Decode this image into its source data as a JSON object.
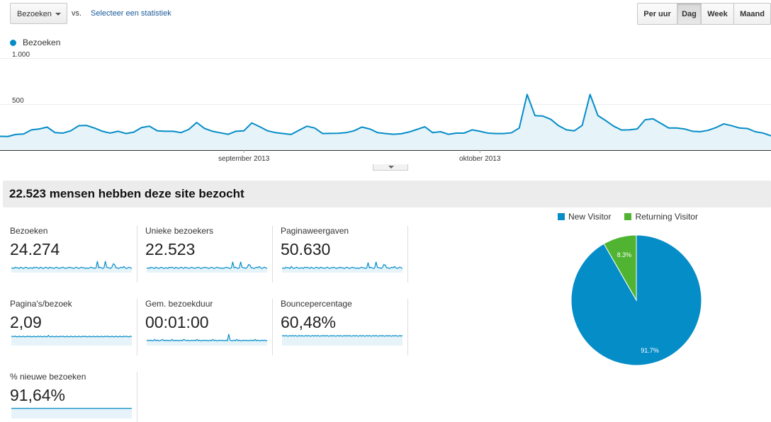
{
  "toolbar": {
    "metric_select": "Bezoeken",
    "vs_label": "vs.",
    "select_stat_link": "Selecteer een statistiek",
    "periods": [
      {
        "label": "Per uur",
        "active": false
      },
      {
        "label": "Dag",
        "active": true
      },
      {
        "label": "Week",
        "active": false
      },
      {
        "label": "Maand",
        "active": false
      }
    ]
  },
  "chart_data": [
    {
      "type": "area",
      "legend": "Bezoeken",
      "color": "#058dc7",
      "fill": "#e6f3f9",
      "ylim": [
        0,
        1000
      ],
      "y_ticks": [
        "1.000",
        "500"
      ],
      "y_tick_values": [
        1000,
        500
      ],
      "x_labels": [
        {
          "label": "september 2013",
          "index": 31
        },
        {
          "label": "oktober 2013",
          "index": 61
        }
      ],
      "values": [
        150,
        148,
        170,
        175,
        220,
        230,
        250,
        190,
        185,
        210,
        265,
        268,
        240,
        205,
        185,
        205,
        180,
        195,
        245,
        260,
        210,
        205,
        205,
        190,
        225,
        300,
        235,
        205,
        188,
        172,
        205,
        210,
        295,
        255,
        210,
        190,
        180,
        170,
        215,
        260,
        240,
        180,
        182,
        183,
        190,
        210,
        250,
        230,
        190,
        180,
        172,
        178,
        197,
        225,
        253,
        190,
        200,
        172,
        185,
        185,
        220,
        205,
        185,
        180,
        180,
        188,
        240,
        605,
        375,
        370,
        335,
        265,
        220,
        210,
        268,
        605,
        375,
        320,
        260,
        218,
        220,
        230,
        330,
        340,
        290,
        240,
        240,
        230,
        205,
        200,
        215,
        245,
        285,
        265,
        240,
        235,
        200,
        185,
        155
      ]
    },
    {
      "type": "pie",
      "labels": [
        "New Visitor",
        "Returning Visitor"
      ],
      "values": [
        91.7,
        8.3
      ],
      "value_labels": [
        "91.7%",
        "8.3%"
      ],
      "colors": [
        "#058dc7",
        "#50b432"
      ]
    }
  ],
  "summary": {
    "title": "22.523 mensen hebben deze site bezocht"
  },
  "metrics": [
    {
      "label": "Bezoeken",
      "value": "24.274",
      "spark": [
        3,
        4,
        3,
        5,
        4,
        4,
        3,
        5,
        4,
        3,
        4,
        5,
        4,
        3,
        4,
        4,
        3,
        5,
        4,
        5,
        4,
        3,
        5,
        4,
        3,
        4,
        5,
        4,
        3,
        5,
        4,
        4,
        3,
        4,
        5,
        4,
        3,
        4,
        4,
        5,
        4,
        3,
        4,
        4,
        5,
        4,
        4,
        3,
        4,
        5,
        4,
        3,
        4,
        5,
        4,
        4,
        3,
        4,
        3,
        4,
        5,
        4,
        4,
        3,
        4,
        14,
        4,
        5,
        4,
        3,
        4,
        14,
        5,
        4,
        4,
        3,
        5,
        10,
        9,
        4,
        4,
        3,
        4,
        5,
        4,
        6,
        4,
        3,
        4,
        5,
        4,
        3
      ]
    },
    {
      "label": "Unieke bezoekers",
      "value": "22.523",
      "spark": [
        3,
        4,
        3,
        5,
        4,
        4,
        3,
        5,
        4,
        3,
        4,
        5,
        4,
        3,
        4,
        4,
        3,
        5,
        4,
        5,
        4,
        3,
        5,
        4,
        3,
        4,
        5,
        4,
        3,
        5,
        4,
        4,
        3,
        4,
        5,
        4,
        3,
        4,
        4,
        5,
        4,
        3,
        4,
        4,
        5,
        4,
        4,
        3,
        4,
        5,
        4,
        3,
        4,
        5,
        4,
        4,
        3,
        4,
        3,
        4,
        5,
        4,
        4,
        3,
        4,
        13,
        4,
        5,
        4,
        3,
        4,
        13,
        5,
        4,
        4,
        3,
        5,
        9,
        8,
        4,
        4,
        3,
        4,
        5,
        4,
        6,
        4,
        3,
        4,
        5,
        4,
        3
      ]
    },
    {
      "label": "Paginaweergaven",
      "value": "50.630",
      "spark": [
        3,
        4,
        3,
        5,
        4,
        4,
        3,
        6,
        4,
        3,
        4,
        5,
        4,
        3,
        4,
        4,
        3,
        5,
        4,
        5,
        4,
        3,
        5,
        4,
        3,
        4,
        5,
        4,
        3,
        5,
        4,
        4,
        3,
        4,
        5,
        4,
        3,
        4,
        4,
        5,
        4,
        3,
        4,
        4,
        5,
        4,
        4,
        3,
        4,
        5,
        4,
        3,
        4,
        5,
        4,
        4,
        3,
        4,
        3,
        4,
        5,
        4,
        4,
        3,
        4,
        12,
        4,
        5,
        4,
        3,
        4,
        13,
        5,
        4,
        4,
        3,
        5,
        9,
        8,
        4,
        4,
        3,
        4,
        5,
        4,
        6,
        4,
        3,
        4,
        5,
        4,
        3
      ]
    },
    {
      "label": "Pagina's/bezoek",
      "value": "2,09",
      "spark": [
        10,
        11,
        10,
        11,
        10,
        10,
        11,
        10,
        10,
        11,
        10,
        10,
        11,
        10,
        11,
        10,
        10,
        11,
        10,
        10,
        11,
        10,
        11,
        10,
        10,
        11,
        10,
        10,
        12,
        10,
        10,
        11,
        10,
        10,
        11,
        10,
        10,
        11,
        10,
        11,
        10,
        10,
        11,
        10,
        10,
        11,
        10,
        10,
        11,
        10,
        10,
        11,
        10,
        10,
        11,
        10,
        11,
        10,
        10,
        11,
        10,
        10,
        11,
        10,
        10,
        11,
        10,
        10,
        11,
        10,
        10,
        11,
        10,
        11,
        10,
        10,
        11,
        10,
        10,
        11,
        10,
        10,
        11,
        10,
        10,
        11,
        10,
        11,
        10,
        10,
        11,
        10
      ]
    },
    {
      "label": "Gem. bezoekduur",
      "value": "00:01:00",
      "spark": [
        4,
        5,
        4,
        5,
        4,
        4,
        6,
        4,
        5,
        4,
        4,
        5,
        6,
        4,
        5,
        4,
        5,
        4,
        4,
        6,
        4,
        5,
        4,
        5,
        4,
        4,
        5,
        4,
        6,
        5,
        4,
        5,
        4,
        4,
        5,
        4,
        5,
        4,
        6,
        4,
        5,
        4,
        4,
        5,
        4,
        5,
        4,
        4,
        5,
        4,
        6,
        4,
        5,
        4,
        4,
        5,
        4,
        5,
        4,
        4,
        5,
        4,
        14,
        5,
        4,
        4,
        5,
        4,
        6,
        4,
        5,
        4,
        4,
        5,
        4,
        5,
        4,
        4,
        5,
        4,
        5,
        4,
        6,
        4,
        5,
        4,
        4,
        5,
        4,
        5,
        4,
        4
      ]
    },
    {
      "label": "Bouncepercentage",
      "value": "60,48%",
      "spark": [
        11,
        12,
        11,
        12,
        11,
        11,
        12,
        11,
        12,
        11,
        12,
        11,
        11,
        12,
        11,
        12,
        11,
        11,
        12,
        11,
        12,
        11,
        11,
        12,
        11,
        12,
        11,
        12,
        11,
        11,
        12,
        11,
        12,
        11,
        12,
        11,
        11,
        12,
        11,
        12,
        11,
        11,
        12,
        11,
        12,
        11,
        11,
        12,
        11,
        12,
        11,
        12,
        11,
        11,
        12,
        11,
        12,
        11,
        11,
        12,
        11,
        12,
        11,
        11,
        12,
        11,
        12,
        11,
        11,
        12,
        11,
        12,
        11,
        11,
        12,
        11,
        12,
        11,
        11,
        12,
        11,
        12,
        11,
        11,
        12,
        11,
        12,
        11,
        11,
        12,
        11,
        12
      ]
    },
    {
      "label": "% nieuwe bezoeken",
      "value": "91,64%",
      "spark": [
        12,
        12,
        12,
        12,
        12,
        12,
        12,
        12,
        12,
        12,
        12,
        12,
        12,
        12,
        12,
        12,
        12,
        12,
        12,
        12,
        12,
        12,
        12,
        12,
        12,
        12,
        12,
        12,
        12,
        12,
        12,
        12,
        12,
        12,
        12,
        12,
        12,
        12,
        12,
        12,
        12,
        12,
        12,
        12,
        12,
        12,
        12,
        12,
        12,
        12,
        12,
        12,
        12,
        12,
        12,
        12,
        12,
        12,
        12,
        12,
        12,
        12,
        12,
        12,
        12,
        12,
        12,
        12,
        12,
        12,
        12,
        12,
        12,
        12,
        12,
        12,
        12,
        12,
        12,
        12,
        12,
        12,
        12,
        12,
        12,
        12,
        12,
        12,
        12,
        12,
        12,
        12
      ]
    }
  ]
}
